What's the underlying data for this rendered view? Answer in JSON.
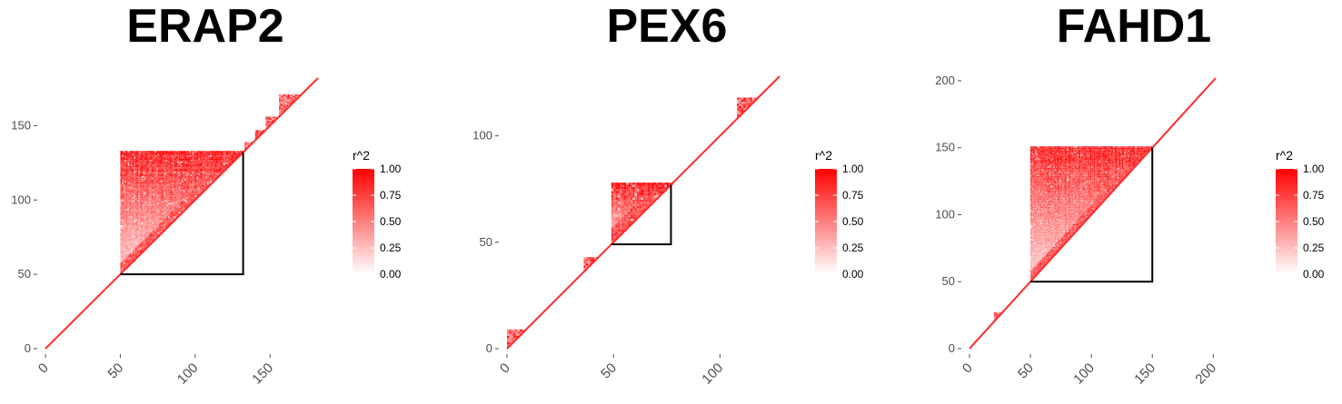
{
  "chart_data": [
    {
      "type": "heatmap",
      "title": "ERAP2",
      "n": 182,
      "ticks": [
        0,
        50,
        100,
        150
      ],
      "xlim": [
        0,
        182
      ],
      "ylim": [
        0,
        182
      ],
      "block": [
        50,
        132
      ],
      "extra_blocks": [
        [
          133,
          138
        ],
        [
          140,
          146
        ],
        [
          147,
          155
        ],
        [
          156,
          170
        ]
      ],
      "legend": {
        "title": "r^2",
        "labels": [
          "1.00",
          "0.75",
          "0.50",
          "0.25",
          "0.00"
        ],
        "values": [
          1.0,
          0.75,
          0.5,
          0.25,
          0.0
        ]
      }
    },
    {
      "type": "heatmap",
      "title": "PEX6",
      "n": 128,
      "ticks": [
        0,
        50,
        100
      ],
      "xlim": [
        0,
        128
      ],
      "ylim": [
        0,
        128
      ],
      "block": [
        49,
        77
      ],
      "extra_blocks": [
        [
          0,
          8
        ],
        [
          36,
          42
        ],
        [
          108,
          117
        ]
      ],
      "legend": {
        "title": "r^2",
        "labels": [
          "1.00",
          "0.75",
          "0.50",
          "0.25",
          "0.00"
        ],
        "values": [
          1.0,
          0.75,
          0.5,
          0.25,
          0.0
        ]
      }
    },
    {
      "type": "heatmap",
      "title": "FAHD1",
      "n": 202,
      "ticks": [
        0,
        50,
        100,
        150,
        200
      ],
      "xlim": [
        0,
        202
      ],
      "ylim": [
        0,
        202
      ],
      "block": [
        50,
        150
      ],
      "extra_blocks": [
        [
          20,
          26
        ]
      ],
      "legend": {
        "title": "r^2",
        "labels": [
          "1.00",
          "0.75",
          "0.50",
          "0.25",
          "0.00"
        ],
        "values": [
          1.0,
          0.75,
          0.5,
          0.25,
          0.0
        ]
      }
    }
  ],
  "colors": {
    "high": "#ff0000",
    "low": "#ffffff",
    "block_outline": "#000000",
    "diagonal": "#ff2a2a"
  }
}
